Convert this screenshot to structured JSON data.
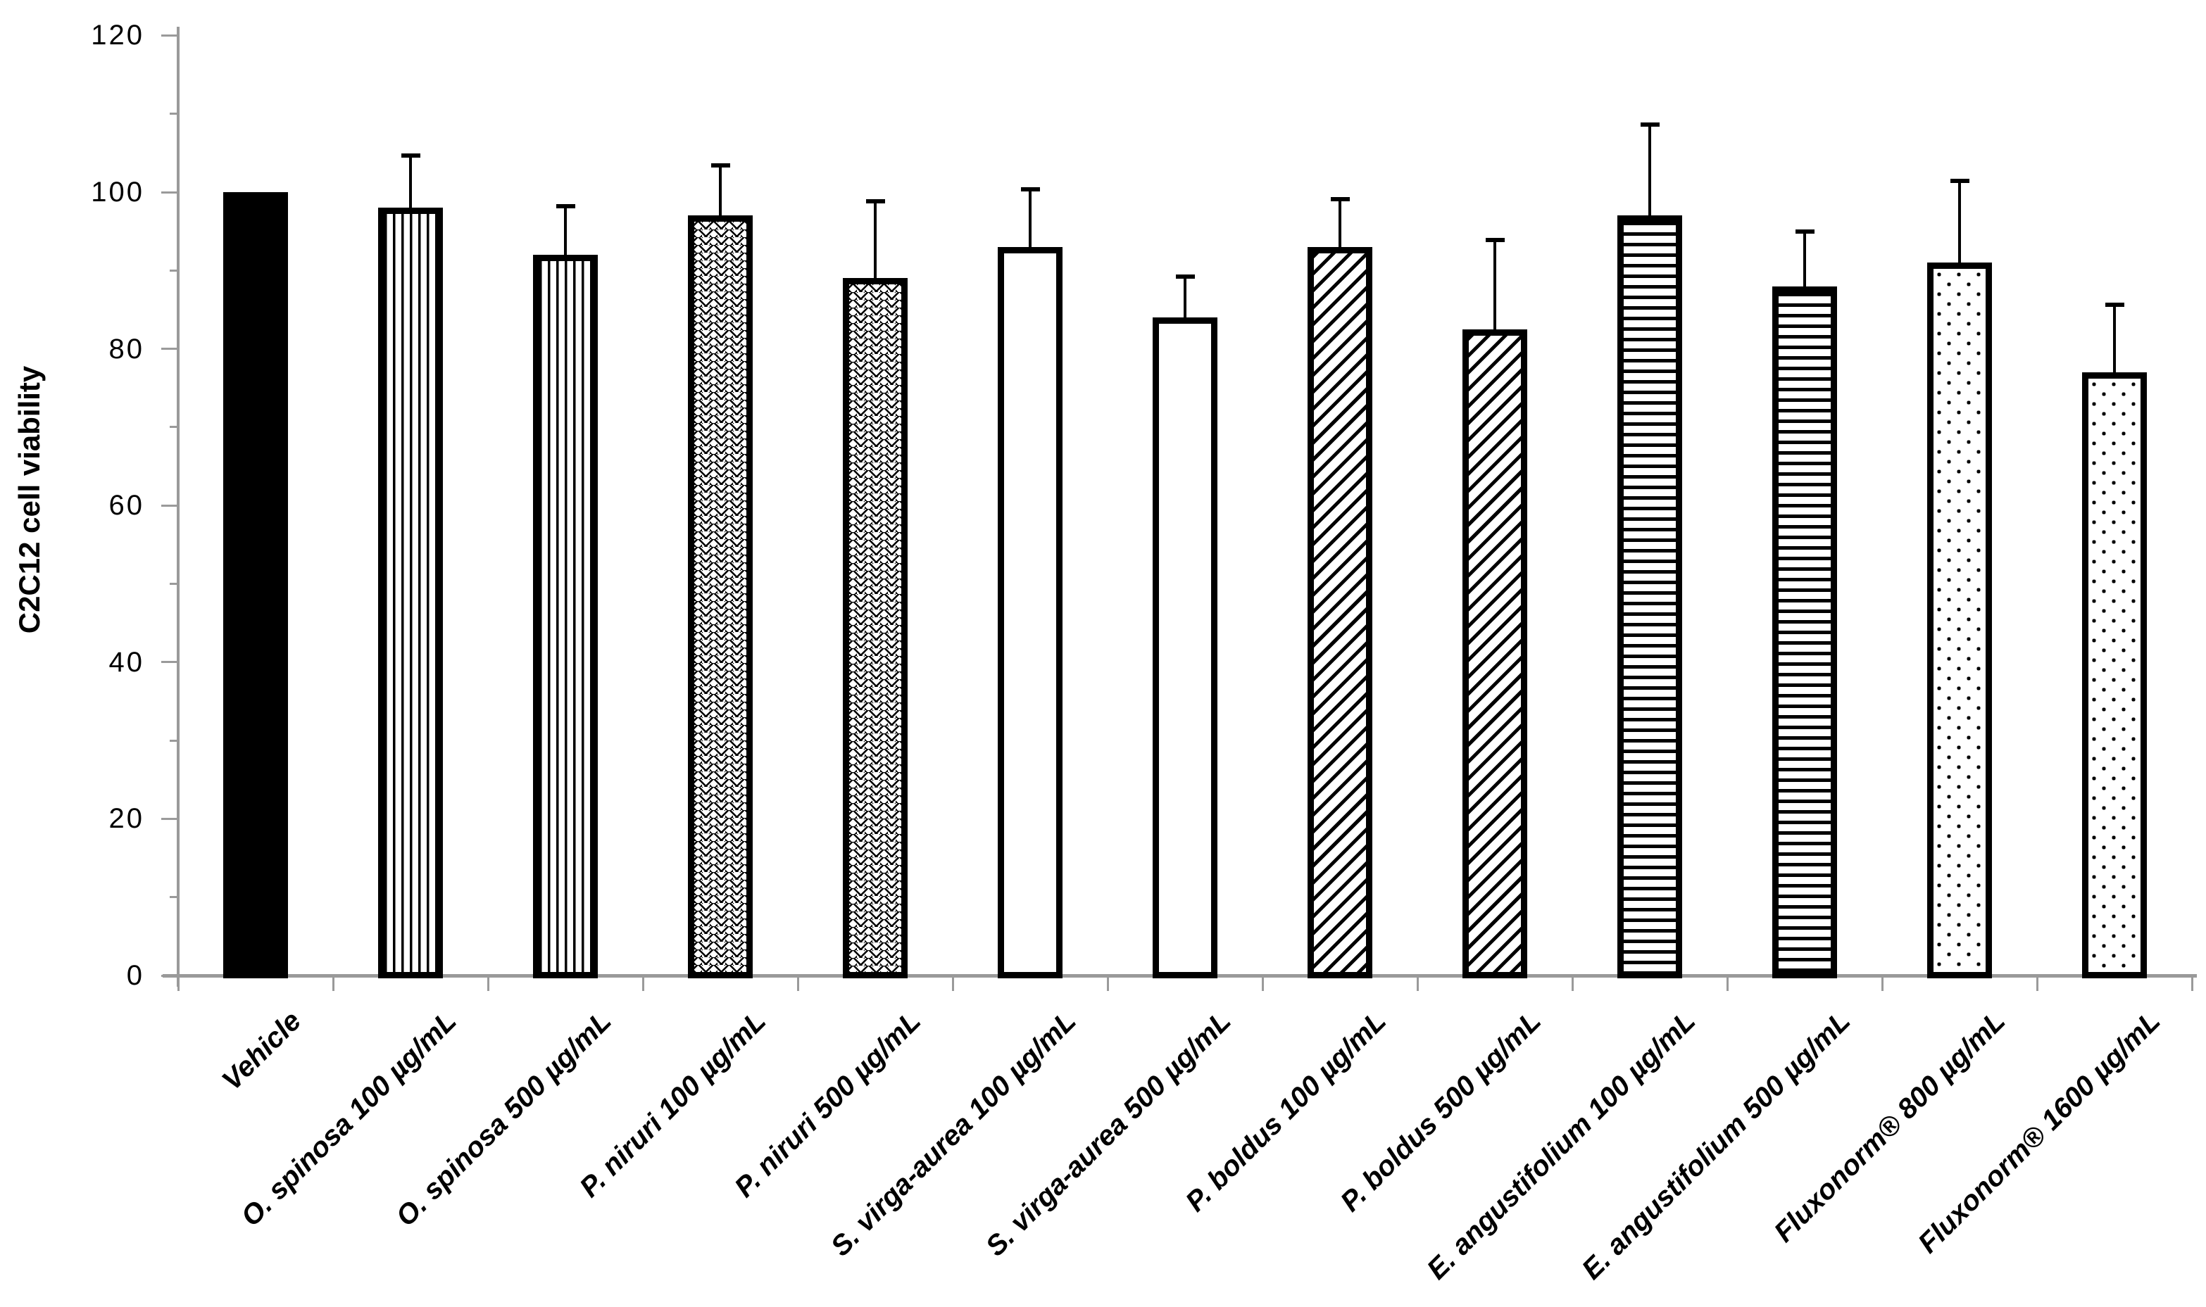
{
  "chart_data": {
    "type": "bar",
    "title": "",
    "xlabel": "",
    "ylabel": "C2C12 cell viability",
    "ylim": [
      0,
      120
    ],
    "yticks": [
      0,
      20,
      40,
      60,
      80,
      100,
      120
    ],
    "ytick_minor_step": 10,
    "grid": "off",
    "legend": "none",
    "categories": [
      "Vehicle",
      "O. spinosa 100 µg/mL",
      "O. spinosa 500 µg/mL",
      "P. niruri 100 µg/mL",
      "P. niruri 500 µg/mL",
      "S. virga-aurea 100 µg/mL",
      "S. virga-aurea 500 µg/mL",
      "P. boldus 100 µg/mL",
      "P. boldus 500 µg/mL",
      "E. angustifolium 100 µg/mL",
      "E. angustifolium 500 µg/mL",
      "Fluxonorm® 800 µg/mL",
      "Fluxonorm® 1600 µg/mL"
    ],
    "values": [
      100,
      98,
      92,
      97,
      89,
      93,
      84,
      93,
      82.5,
      97,
      88,
      91,
      77
    ],
    "error_plus": [
      0,
      6.7,
      6.2,
      6.4,
      9.8,
      7.4,
      5.2,
      6.1,
      11.4,
      11.6,
      7.0,
      10.4,
      8.6
    ],
    "bar_fill_patterns": [
      "solid-black",
      "vertical-lines",
      "vertical-lines",
      "wave",
      "wave",
      "plain-white",
      "plain-white",
      "diagonal-lines",
      "diagonal-lines",
      "horizontal-lines",
      "horizontal-lines",
      "dots",
      "dots"
    ],
    "colors": {
      "bar_outline": "#000000",
      "bar_fill_background": "#ffffff",
      "axis_line": "#9a9a9a",
      "tick_label": "#000000"
    }
  }
}
